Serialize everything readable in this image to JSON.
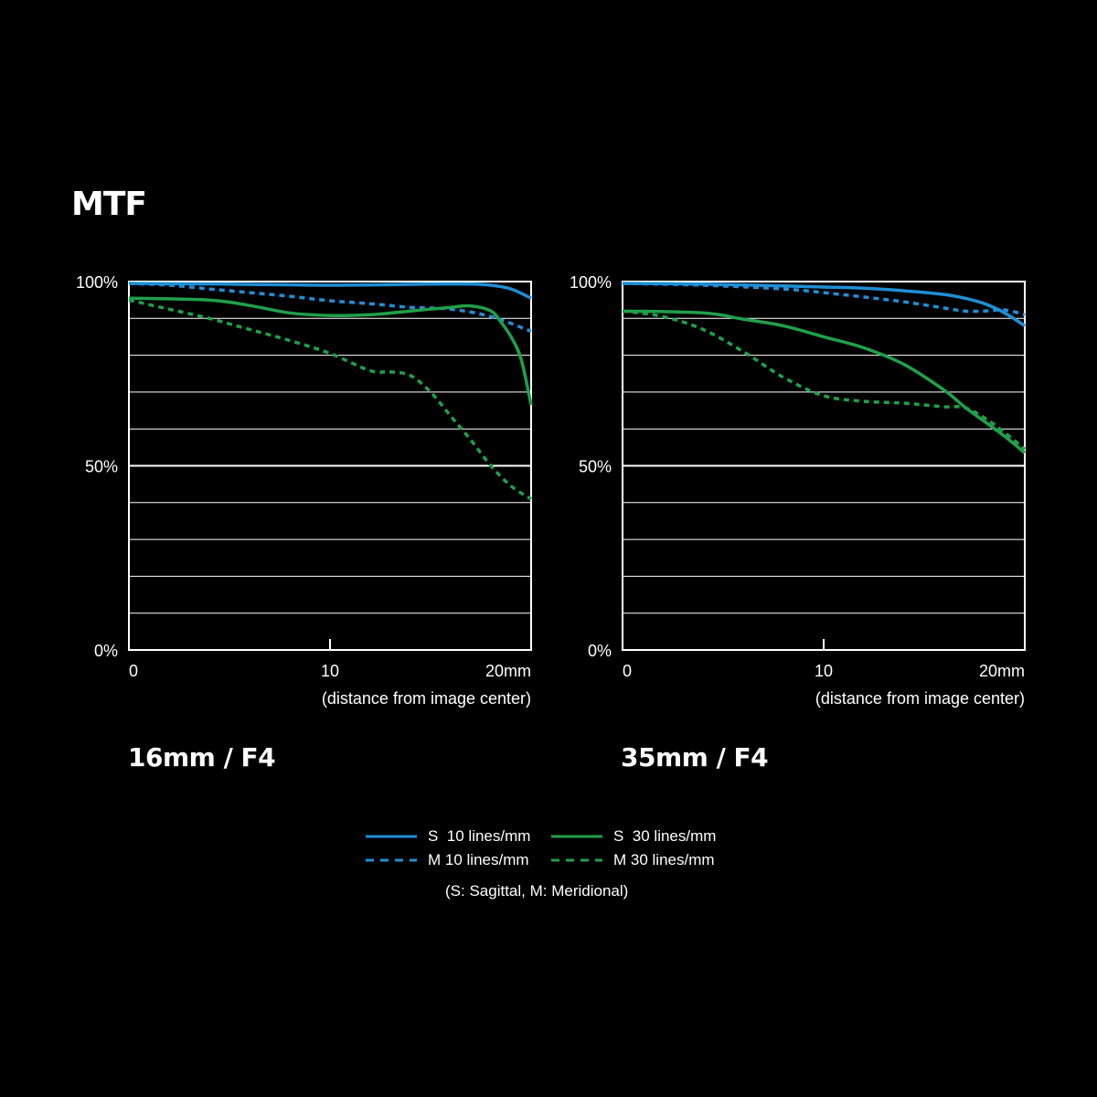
{
  "title": "MTF",
  "chart_data": [
    {
      "type": "line",
      "title": "16mm / F4",
      "xlabel": "(distance from image center)",
      "x_ticks": [
        "0",
        "10",
        "20mm"
      ],
      "y_ticks": [
        "100%",
        "50%",
        "0%"
      ],
      "xlim": [
        0,
        20
      ],
      "ylim": [
        0,
        100
      ],
      "grid": true,
      "series": [
        {
          "name": "S 10 lines/mm",
          "style": "solid",
          "color": "#1f8fd6",
          "x": [
            0,
            5,
            10,
            15,
            17,
            18,
            19,
            20
          ],
          "y": [
            99.5,
            99.3,
            99,
            99.3,
            99.3,
            99,
            98,
            95.5
          ]
        },
        {
          "name": "M 10 lines/mm",
          "style": "dashed",
          "color": "#1f8fd6",
          "x": [
            0,
            2,
            4,
            6,
            8,
            10,
            12,
            14,
            16,
            18,
            20
          ],
          "y": [
            99.5,
            99,
            98,
            97,
            96,
            94.8,
            94,
            93,
            92.5,
            90.5,
            86.5
          ]
        },
        {
          "name": "S 30 lines/mm",
          "style": "solid",
          "color": "#1fa04a",
          "x": [
            0,
            4,
            6,
            8,
            10,
            12,
            14,
            16,
            17,
            18,
            18.5,
            19,
            19.5,
            20
          ],
          "y": [
            95.5,
            95,
            93.5,
            91.5,
            90.8,
            91,
            92,
            93,
            93.4,
            92,
            89,
            85,
            79,
            66.5
          ]
        },
        {
          "name": "M 30 lines/mm",
          "style": "dashed",
          "color": "#1fa04a",
          "x": [
            0,
            2,
            4,
            6,
            8,
            10,
            12,
            13,
            14,
            15,
            16,
            17,
            18,
            19,
            20
          ],
          "y": [
            95,
            92.5,
            90,
            87,
            84,
            80.5,
            75.8,
            75.5,
            74.5,
            70,
            63.5,
            57,
            50,
            44.5,
            41
          ]
        }
      ]
    },
    {
      "type": "line",
      "title": "35mm / F4",
      "xlabel": "(distance from image center)",
      "x_ticks": [
        "0",
        "10",
        "20mm"
      ],
      "y_ticks": [
        "100%",
        "50%",
        "0%"
      ],
      "xlim": [
        0,
        20
      ],
      "ylim": [
        0,
        100
      ],
      "grid": true,
      "series": [
        {
          "name": "S 10 lines/mm",
          "style": "solid",
          "color": "#1f8fd6",
          "x": [
            0,
            4,
            8,
            10,
            12,
            14,
            16,
            17,
            18,
            19,
            20
          ],
          "y": [
            99.5,
            99.3,
            98.8,
            98.5,
            98.2,
            97.5,
            96.5,
            95.5,
            94,
            91.5,
            88
          ]
        },
        {
          "name": "M 10 lines/mm",
          "style": "dashed",
          "color": "#1f8fd6",
          "x": [
            0,
            4,
            8,
            10,
            12,
            14,
            16,
            17,
            18,
            19,
            20
          ],
          "y": [
            99.5,
            99,
            98,
            97,
            95.8,
            94.5,
            92.8,
            92,
            92,
            92.3,
            91
          ]
        },
        {
          "name": "S 30 lines/mm",
          "style": "solid",
          "color": "#1fa04a",
          "x": [
            0,
            4,
            6,
            8,
            10,
            12,
            14,
            16,
            17,
            18,
            19,
            20
          ],
          "y": [
            92,
            91.5,
            89.8,
            88,
            85,
            82,
            77.5,
            70.5,
            66,
            62,
            58,
            53.5
          ]
        },
        {
          "name": "M 30 lines/mm",
          "style": "dashed",
          "color": "#1fa04a",
          "x": [
            0,
            2,
            4,
            6,
            8,
            10,
            12,
            14,
            15,
            16,
            17,
            18,
            19,
            20
          ],
          "y": [
            92,
            90.5,
            87,
            81,
            74,
            69,
            67.5,
            67,
            66.5,
            66,
            65.8,
            63,
            59,
            54.5
          ]
        }
      ]
    }
  ],
  "legend": {
    "items": [
      {
        "label": "S  10 lines/mm",
        "style": "solid",
        "color": "#1f8fd6"
      },
      {
        "label": "S  30 lines/mm",
        "style": "solid",
        "color": "#1fa04a"
      },
      {
        "label": "M 10 lines/mm",
        "style": "dashed",
        "color": "#1f8fd6"
      },
      {
        "label": "M 30 lines/mm",
        "style": "dashed",
        "color": "#1fa04a"
      }
    ],
    "note": "(S: Sagittal, M: Meridional)"
  }
}
